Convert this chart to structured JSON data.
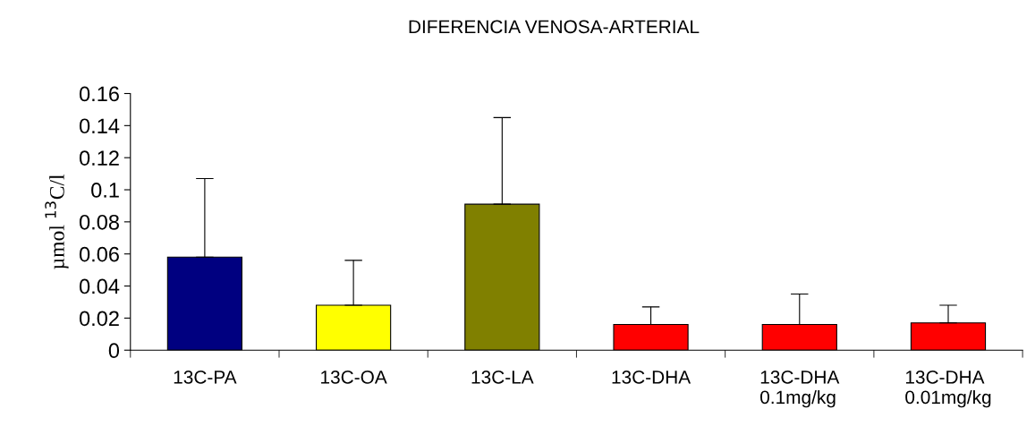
{
  "chart_data": {
    "type": "bar",
    "title": "DIFERENCIA VENOSA-ARTERIAL",
    "ylabel": "µmol $^{13}$C/l",
    "categories": [
      "13C-PA",
      "13C-OA",
      "13C-LA",
      "13C-DHA",
      "13C-DHA\n0.1mg/kg",
      "13C-DHA\n0.01mg/kg"
    ],
    "values": [
      0.058,
      0.028,
      0.091,
      0.016,
      0.016,
      0.017
    ],
    "colors": [
      "#000080",
      "#ffff00",
      "#808000",
      "#ff0000",
      "#ff0000",
      "#ff0000"
    ],
    "errors": [
      [
        0.058,
        0.107
      ],
      [
        0.028,
        0.056
      ],
      [
        0.091,
        0.145
      ],
      [
        0.016,
        0.027
      ],
      [
        0.016,
        0.035
      ],
      [
        0.017,
        0.028
      ]
    ],
    "ylim": [
      0,
      0.16
    ],
    "yticks": [
      0,
      0.02,
      0.04,
      0.06,
      0.08,
      0.1,
      0.12,
      0.14,
      0.16
    ],
    "grid": false,
    "legend": false
  }
}
